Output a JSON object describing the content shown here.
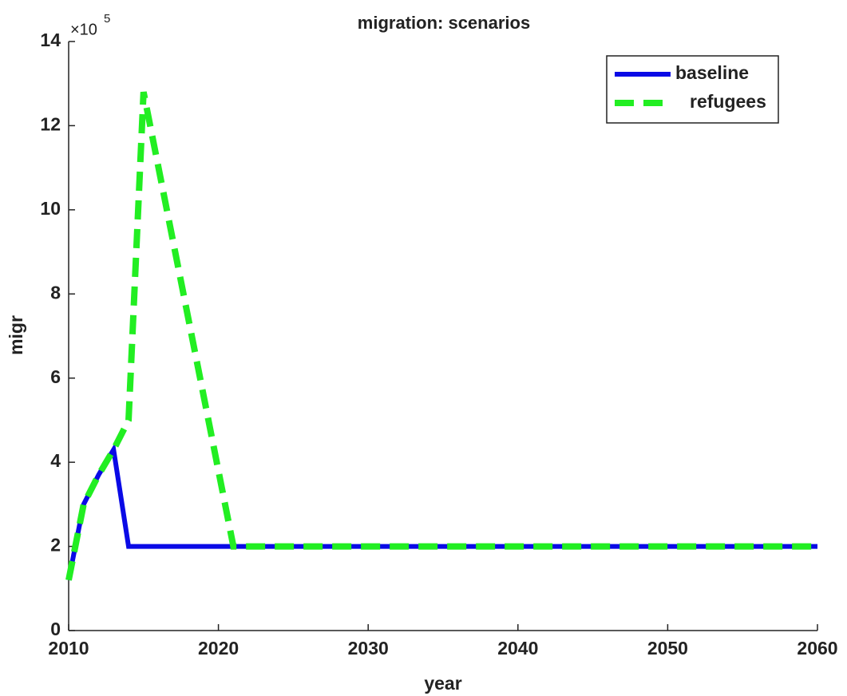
{
  "chart_data": {
    "type": "line",
    "title": "migration: scenarios",
    "x_label": "year",
    "y_label": "migr",
    "y_multiplier": {
      "base": "×10",
      "power": "5"
    },
    "x": [
      2010,
      2011,
      2012,
      2013,
      2014,
      2015,
      2016,
      2017,
      2018,
      2019,
      2020,
      2021,
      2022,
      2023,
      2024,
      2025,
      2026,
      2027,
      2028,
      2029,
      2030,
      2031,
      2032,
      2033,
      2034,
      2035,
      2036,
      2037,
      2038,
      2039,
      2040,
      2041,
      2042,
      2043,
      2044,
      2045,
      2046,
      2047,
      2048,
      2049,
      2050,
      2051,
      2052,
      2053,
      2054,
      2055,
      2056,
      2057,
      2058,
      2059,
      2060
    ],
    "series": [
      {
        "name": "baseline",
        "color": "#0a0ae6",
        "dashed": false,
        "values": [
          1.2,
          3.0,
          3.7,
          4.3,
          2.0,
          2.0,
          2.0,
          2.0,
          2.0,
          2.0,
          2.0,
          2.0,
          2.0,
          2.0,
          2.0,
          2.0,
          2.0,
          2.0,
          2.0,
          2.0,
          2.0,
          2.0,
          2.0,
          2.0,
          2.0,
          2.0,
          2.0,
          2.0,
          2.0,
          2.0,
          2.0,
          2.0,
          2.0,
          2.0,
          2.0,
          2.0,
          2.0,
          2.0,
          2.0,
          2.0,
          2.0,
          2.0,
          2.0,
          2.0,
          2.0,
          2.0,
          2.0,
          2.0,
          2.0,
          2.0,
          2.0
        ]
      },
      {
        "name": "refugees",
        "color": "#22ee22",
        "dashed": true,
        "values": [
          1.2,
          3.0,
          3.7,
          4.3,
          5.0,
          12.8,
          11.0,
          9.2,
          7.4,
          5.6,
          3.8,
          2.0,
          2.0,
          2.0,
          2.0,
          2.0,
          2.0,
          2.0,
          2.0,
          2.0,
          2.0,
          2.0,
          2.0,
          2.0,
          2.0,
          2.0,
          2.0,
          2.0,
          2.0,
          2.0,
          2.0,
          2.0,
          2.0,
          2.0,
          2.0,
          2.0,
          2.0,
          2.0,
          2.0,
          2.0,
          2.0,
          2.0,
          2.0,
          2.0,
          2.0,
          2.0,
          2.0,
          2.0,
          2.0,
          2.0,
          2.0
        ]
      }
    ],
    "xlim": [
      2010,
      2060
    ],
    "xticks": [
      2010,
      2020,
      2030,
      2040,
      2050,
      2060
    ],
    "ylim": [
      0,
      14
    ],
    "yticks": [
      0,
      2,
      4,
      6,
      8,
      10,
      12,
      14
    ],
    "legend": "top-right",
    "grid": false
  }
}
